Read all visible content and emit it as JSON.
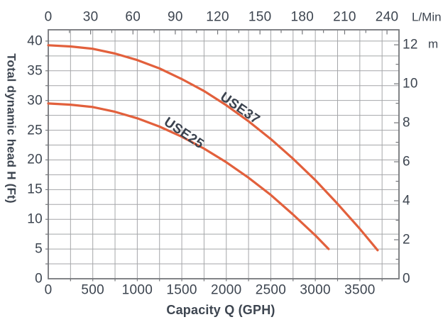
{
  "colors": {
    "curve": "#E2603C",
    "text": "#3D4550",
    "grid": "#A5A6A9",
    "frame": "#74767A",
    "background": "#FFFFFF"
  },
  "chart_data": {
    "type": "line",
    "title": "",
    "xlabel": "Capacity Q (GPH)",
    "ylabel": "Total dynamic head H (Ft)",
    "x2label": "L/Min",
    "y2label": "m",
    "grid": true,
    "legend_position": "inline-curve-labels",
    "xlim": [
      0,
      3940
    ],
    "ylim": [
      0,
      41.9
    ],
    "x2lim": [
      0,
      248.5
    ],
    "y2lim": [
      0,
      12.77
    ],
    "x_ticks": [
      0,
      500,
      1000,
      1500,
      2000,
      2500,
      3000,
      3500
    ],
    "y_ticks": [
      0,
      5,
      10,
      15,
      20,
      25,
      30,
      35,
      40
    ],
    "x2_ticks": [
      0,
      30,
      60,
      90,
      120,
      150,
      180,
      210,
      240
    ],
    "y2_ticks": [
      0,
      2,
      4,
      6,
      8,
      10,
      12
    ],
    "x_grid_step": 250,
    "y_grid_step": 2.5,
    "x2_minor_tick_step": 15,
    "y2_minor_tick_step": 1,
    "series": [
      {
        "name": "USE37",
        "color": "#E2603C",
        "points": [
          [
            0,
            39.3
          ],
          [
            250,
            39.1
          ],
          [
            500,
            38.7
          ],
          [
            750,
            37.9
          ],
          [
            1000,
            36.8
          ],
          [
            1250,
            35.4
          ],
          [
            1500,
            33.6
          ],
          [
            1750,
            31.6
          ],
          [
            2000,
            29.2
          ],
          [
            2250,
            26.5
          ],
          [
            2500,
            23.5
          ],
          [
            2750,
            20.2
          ],
          [
            3000,
            16.6
          ],
          [
            3250,
            12.6
          ],
          [
            3500,
            8.4
          ],
          [
            3700,
            4.8
          ]
        ]
      },
      {
        "name": "USE25",
        "color": "#E2603C",
        "points": [
          [
            0,
            29.5
          ],
          [
            250,
            29.3
          ],
          [
            500,
            28.9
          ],
          [
            750,
            28.1
          ],
          [
            1000,
            27.0
          ],
          [
            1250,
            25.6
          ],
          [
            1500,
            23.9
          ],
          [
            1750,
            21.9
          ],
          [
            2000,
            19.6
          ],
          [
            2250,
            17.0
          ],
          [
            2500,
            14.1
          ],
          [
            2750,
            10.8
          ],
          [
            3000,
            7.3
          ],
          [
            3150,
            5.0
          ]
        ]
      }
    ]
  }
}
